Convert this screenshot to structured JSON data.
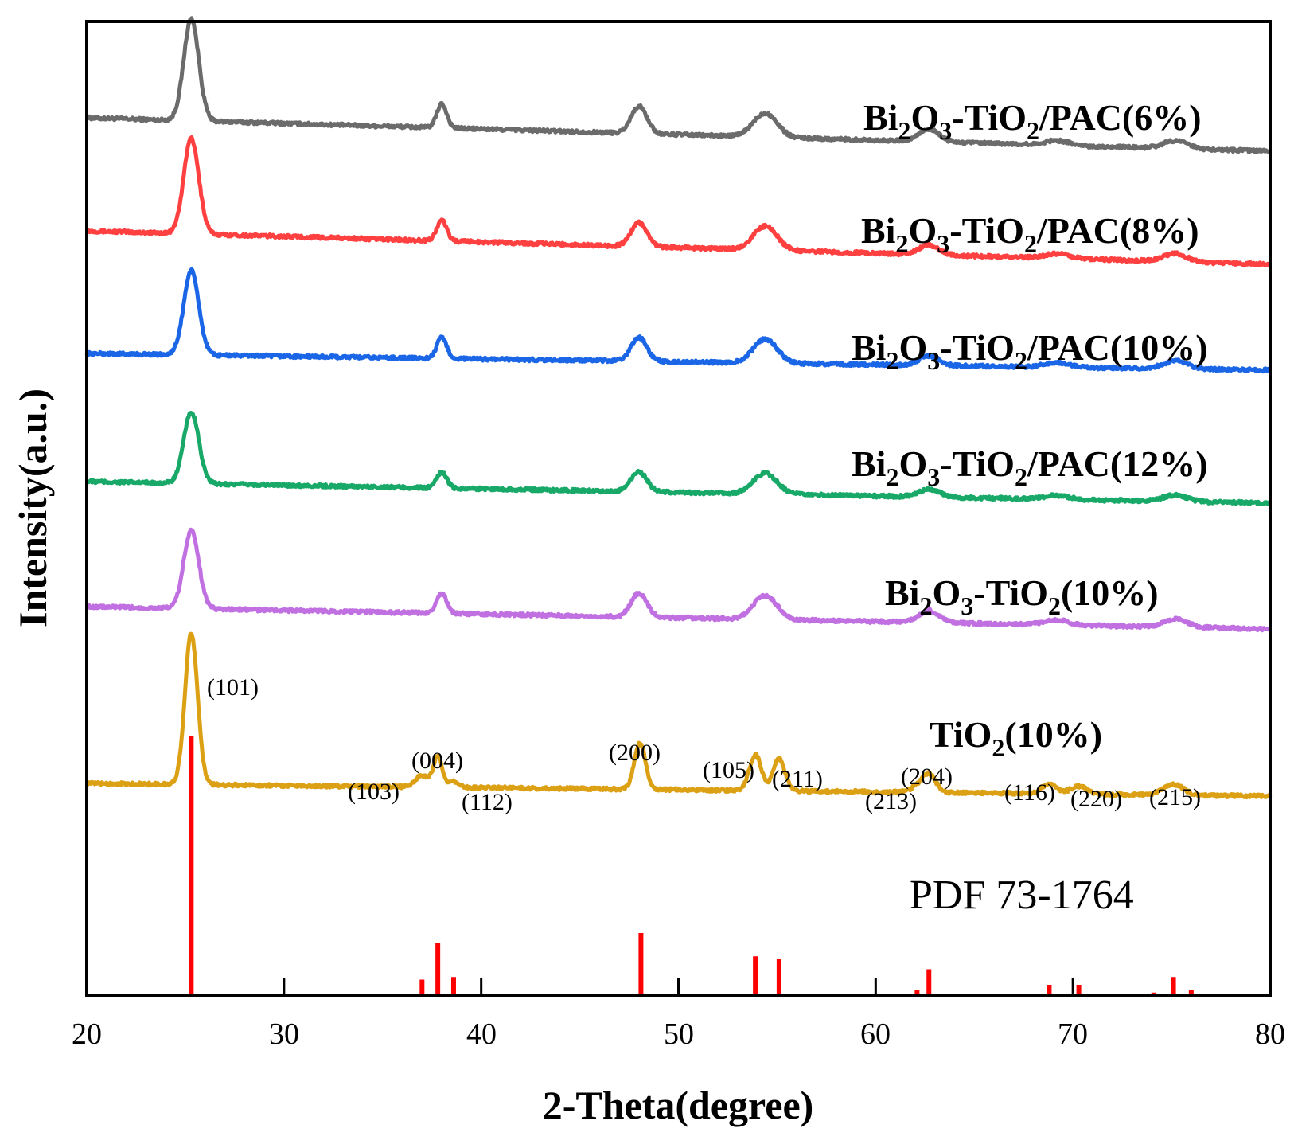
{
  "chart_data": {
    "type": "line",
    "xlabel": "2-Theta(degree)",
    "ylabel": "Intensity(a.u.)",
    "xlim": [
      20,
      80
    ],
    "x_ticks": [
      20,
      30,
      40,
      50,
      60,
      70,
      80
    ],
    "grid": false,
    "reference": {
      "name": "PDF 73-1764",
      "color": "#ff0000",
      "lines": [
        {
          "x": 25.3,
          "intensity": 100
        },
        {
          "x": 37.0,
          "intensity": 6
        },
        {
          "x": 37.8,
          "intensity": 20
        },
        {
          "x": 38.6,
          "intensity": 7
        },
        {
          "x": 48.1,
          "intensity": 24
        },
        {
          "x": 53.9,
          "intensity": 15
        },
        {
          "x": 55.1,
          "intensity": 14
        },
        {
          "x": 62.1,
          "intensity": 2
        },
        {
          "x": 62.7,
          "intensity": 10
        },
        {
          "x": 68.8,
          "intensity": 4
        },
        {
          "x": 70.3,
          "intensity": 4
        },
        {
          "x": 74.1,
          "intensity": 1
        },
        {
          "x": 75.1,
          "intensity": 7
        },
        {
          "x": 76.0,
          "intensity": 2
        }
      ]
    },
    "series": [
      {
        "name_main": "Bi",
        "sub1": "2",
        "mid1": "O",
        "sub2": "3",
        "mid2": "-TiO",
        "sub3": "2",
        "tail": "/PAC(6%)",
        "color": "#6b6b6b",
        "baseline_start": 70,
        "baseline_end": 28,
        "peaks": [
          {
            "x": 25.3,
            "h": 128,
            "w": 0.38
          },
          {
            "x": 38.0,
            "h": 30,
            "w": 0.25
          },
          {
            "x": 48.0,
            "h": 34,
            "w": 0.4
          },
          {
            "x": 54.4,
            "h": 30,
            "w": 0.6
          },
          {
            "x": 62.7,
            "h": 16,
            "w": 0.5
          },
          {
            "x": 69.2,
            "h": 6,
            "w": 0.6
          },
          {
            "x": 75.2,
            "h": 10,
            "w": 0.6
          }
        ]
      },
      {
        "name_main": "Bi",
        "sub1": "2",
        "mid1": "O",
        "sub2": "3",
        "mid2": "-TiO",
        "sub3": "2",
        "tail": "/PAC(8%)",
        "color": "#ff4040",
        "baseline_start": 68,
        "baseline_end": 26,
        "peaks": [
          {
            "x": 25.3,
            "h": 120,
            "w": 0.38
          },
          {
            "x": 38.0,
            "h": 26,
            "w": 0.25
          },
          {
            "x": 48.0,
            "h": 30,
            "w": 0.4
          },
          {
            "x": 54.4,
            "h": 30,
            "w": 0.6
          },
          {
            "x": 62.7,
            "h": 12,
            "w": 0.5
          },
          {
            "x": 69.2,
            "h": 6,
            "w": 0.6
          },
          {
            "x": 75.2,
            "h": 10,
            "w": 0.6
          }
        ]
      },
      {
        "name_main": "Bi",
        "sub1": "2",
        "mid1": "O",
        "sub2": "3",
        "mid2": "-TiO",
        "sub3": "2",
        "tail": "/PAC(10%)",
        "color": "#1a66e6",
        "baseline_start": 55,
        "baseline_end": 34,
        "peaks": [
          {
            "x": 25.3,
            "h": 106,
            "w": 0.38
          },
          {
            "x": 38.0,
            "h": 26,
            "w": 0.25
          },
          {
            "x": 48.0,
            "h": 30,
            "w": 0.4
          },
          {
            "x": 54.4,
            "h": 30,
            "w": 0.6
          },
          {
            "x": 62.7,
            "h": 12,
            "w": 0.5
          },
          {
            "x": 69.2,
            "h": 6,
            "w": 0.6
          },
          {
            "x": 75.2,
            "h": 10,
            "w": 0.6
          }
        ]
      },
      {
        "name_main": "Bi",
        "sub1": "2",
        "mid1": "O",
        "sub2": "3",
        "mid2": "-TiO",
        "sub3": "2",
        "tail": "/PAC(12%)",
        "color": "#18a868",
        "baseline_start": 70,
        "baseline_end": 43,
        "peaks": [
          {
            "x": 25.3,
            "h": 90,
            "w": 0.38
          },
          {
            "x": 38.0,
            "h": 20,
            "w": 0.25
          },
          {
            "x": 48.0,
            "h": 25,
            "w": 0.4
          },
          {
            "x": 54.4,
            "h": 26,
            "w": 0.6
          },
          {
            "x": 62.7,
            "h": 10,
            "w": 0.5
          },
          {
            "x": 69.2,
            "h": 5,
            "w": 0.6
          },
          {
            "x": 75.2,
            "h": 8,
            "w": 0.6
          }
        ]
      },
      {
        "name_main": "Bi",
        "sub1": "2",
        "mid1": "O",
        "sub2": "3",
        "mid2": "-TiO",
        "sub3": "2",
        "tail": "(10%)",
        "color": "#c070e0",
        "baseline_start": 74,
        "baseline_end": 46,
        "peaks": [
          {
            "x": 25.3,
            "h": 98,
            "w": 0.38
          },
          {
            "x": 38.0,
            "h": 25,
            "w": 0.25
          },
          {
            "x": 48.0,
            "h": 30,
            "w": 0.4
          },
          {
            "x": 54.4,
            "h": 30,
            "w": 0.6
          },
          {
            "x": 62.7,
            "h": 15,
            "w": 0.5
          },
          {
            "x": 69.2,
            "h": 6,
            "w": 0.6
          },
          {
            "x": 75.2,
            "h": 10,
            "w": 0.6
          }
        ]
      },
      {
        "name_main": "TiO",
        "sub1": "2",
        "mid1": "",
        "sub2": "",
        "mid2": "",
        "sub3": "",
        "tail": "(10%)",
        "color": "#dca014",
        "baseline_start": 58,
        "baseline_end": 42,
        "peaks": [
          {
            "x": 25.3,
            "h": 190,
            "w": 0.32
          },
          {
            "x": 37.0,
            "h": 14,
            "w": 0.35
          },
          {
            "x": 37.8,
            "h": 38,
            "w": 0.22
          },
          {
            "x": 38.6,
            "h": 8,
            "w": 0.25
          },
          {
            "x": 48.05,
            "h": 58,
            "w": 0.28
          },
          {
            "x": 53.9,
            "h": 45,
            "w": 0.3
          },
          {
            "x": 55.1,
            "h": 40,
            "w": 0.3
          },
          {
            "x": 62.1,
            "h": 6,
            "w": 0.35
          },
          {
            "x": 62.7,
            "h": 22,
            "w": 0.35
          },
          {
            "x": 68.8,
            "h": 12,
            "w": 0.4
          },
          {
            "x": 70.3,
            "h": 10,
            "w": 0.4
          },
          {
            "x": 75.1,
            "h": 14,
            "w": 0.5
          }
        ]
      }
    ],
    "plane_labels": [
      "(101)",
      "(103)",
      "(004)",
      "(112)",
      "(200)",
      "(105)",
      "(211)",
      "(213)",
      "(204)",
      "(116)",
      "(220)",
      "(215)"
    ]
  }
}
